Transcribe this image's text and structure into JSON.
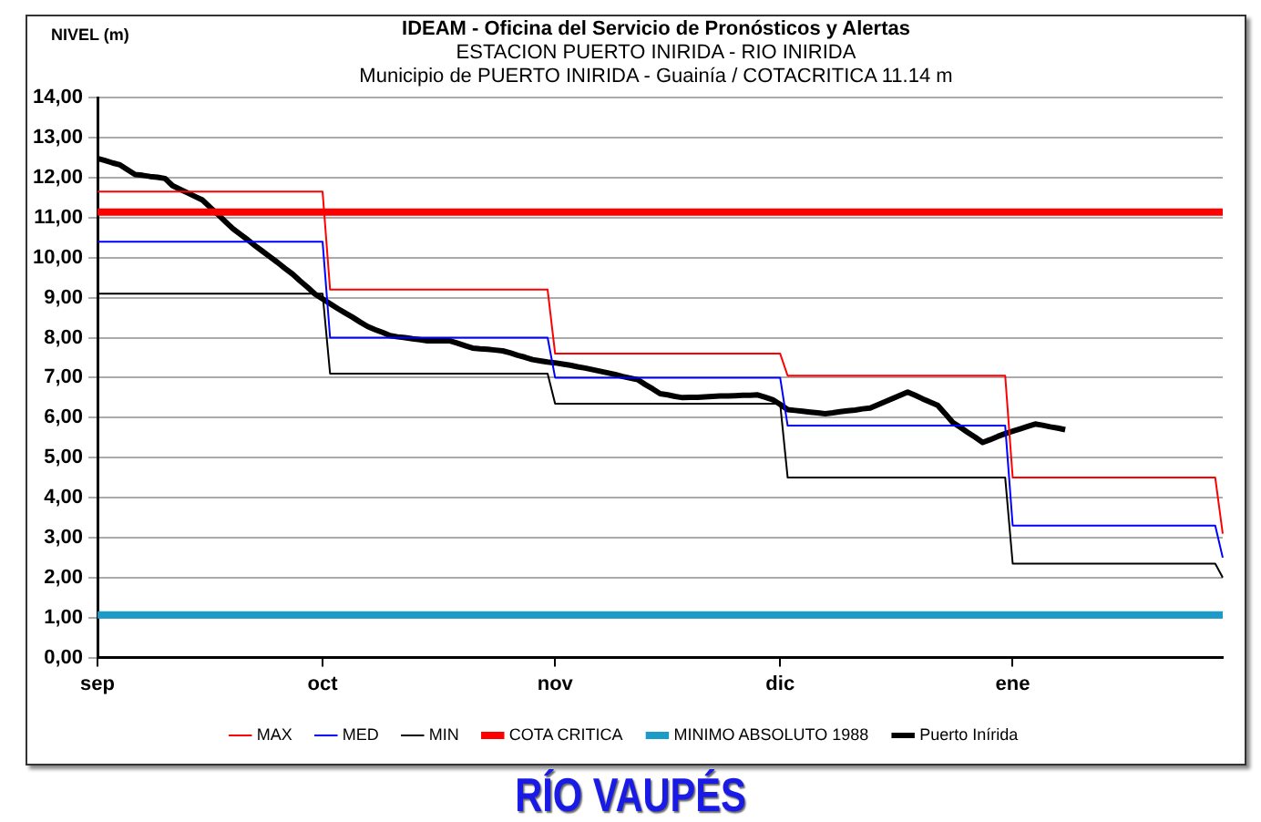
{
  "chart_data": {
    "type": "line",
    "title": "IDEAM - Oficina del Servicio de Pronósticos y Alertas",
    "subtitle": "ESTACION PUERTO INIRIDA - RIO INIRIDA",
    "ylabel": "NIVEL (m)",
    "annotations": [
      "Municipio de PUERTO INIRIDA - Guainía  /  COTACRITICA 11.14 m",
      "RÍO VAUPÉS"
    ],
    "categories": [
      "sep",
      null,
      null,
      null,
      null,
      null,
      null,
      null,
      null,
      null,
      null,
      null,
      null,
      null,
      null,
      null,
      null,
      null,
      null,
      null,
      null,
      null,
      null,
      null,
      null,
      null,
      null,
      null,
      null,
      null,
      "oct",
      null,
      null,
      null,
      null,
      null,
      null,
      null,
      null,
      null,
      null,
      null,
      null,
      null,
      null,
      null,
      null,
      null,
      null,
      null,
      null,
      null,
      null,
      null,
      null,
      null,
      null,
      null,
      null,
      null,
      null,
      "nov",
      null,
      null,
      null,
      null,
      null,
      null,
      null,
      null,
      null,
      null,
      null,
      null,
      null,
      null,
      null,
      null,
      null,
      null,
      null,
      null,
      null,
      null,
      null,
      null,
      null,
      null,
      null,
      null,
      null,
      "dic",
      null,
      null,
      null,
      null,
      null,
      null,
      null,
      null,
      null,
      null,
      null,
      null,
      null,
      null,
      null,
      null,
      null,
      null,
      null,
      null,
      null,
      null,
      null,
      null,
      null,
      null,
      null,
      null,
      null,
      null,
      "ene",
      null,
      null,
      null,
      null,
      null,
      null,
      null,
      null,
      null,
      null,
      null,
      null,
      null,
      null,
      null,
      null,
      null,
      null,
      null,
      null,
      null,
      null,
      null,
      null,
      null,
      null,
      null,
      null
    ],
    "ylim": [
      0,
      14
    ],
    "yticks": [
      {
        "value": 0,
        "label": "0,00"
      },
      {
        "value": 1,
        "label": "1,00"
      },
      {
        "value": 2,
        "label": "2,00"
      },
      {
        "value": 3,
        "label": "3,00"
      },
      {
        "value": 4,
        "label": "4,00"
      },
      {
        "value": 5,
        "label": "5,00"
      },
      {
        "value": 6,
        "label": "6,00"
      },
      {
        "value": 7,
        "label": "7,00"
      },
      {
        "value": 8,
        "label": "8,00"
      },
      {
        "value": 9,
        "label": "9,00"
      },
      {
        "value": 10,
        "label": "10,00"
      },
      {
        "value": 11,
        "label": "11,00"
      },
      {
        "value": 12,
        "label": "12,00"
      },
      {
        "value": 13,
        "label": "13,00"
      },
      {
        "value": 14,
        "label": "14,00"
      }
    ],
    "grid": "y",
    "legend": "bottom",
    "marker": "none",
    "line_style": "solid",
    "series": [
      {
        "name": "MAX",
        "color": "#ff0000",
        "values": [
          11.65,
          11.65,
          11.65,
          11.65,
          11.65,
          11.65,
          11.65,
          11.65,
          11.65,
          11.65,
          11.65,
          11.65,
          11.65,
          11.65,
          11.65,
          11.65,
          11.65,
          11.65,
          11.65,
          11.65,
          11.65,
          11.65,
          11.65,
          11.65,
          11.65,
          11.65,
          11.65,
          11.65,
          11.65,
          11.65,
          11.65,
          9.2,
          9.2,
          9.2,
          9.2,
          9.2,
          9.2,
          9.2,
          9.2,
          9.2,
          9.2,
          9.2,
          9.2,
          9.2,
          9.2,
          9.2,
          9.2,
          9.2,
          9.2,
          9.2,
          9.2,
          9.2,
          9.2,
          9.2,
          9.2,
          9.2,
          9.2,
          9.2,
          9.2,
          9.2,
          9.2,
          7.6,
          7.6,
          7.6,
          7.6,
          7.6,
          7.6,
          7.6,
          7.6,
          7.6,
          7.6,
          7.6,
          7.6,
          7.6,
          7.6,
          7.6,
          7.6,
          7.6,
          7.6,
          7.6,
          7.6,
          7.6,
          7.6,
          7.6,
          7.6,
          7.6,
          7.6,
          7.6,
          7.6,
          7.6,
          7.6,
          7.6,
          7.05,
          7.05,
          7.05,
          7.05,
          7.05,
          7.05,
          7.05,
          7.05,
          7.05,
          7.05,
          7.05,
          7.05,
          7.05,
          7.05,
          7.05,
          7.05,
          7.05,
          7.05,
          7.05,
          7.05,
          7.05,
          7.05,
          7.05,
          7.05,
          7.05,
          7.05,
          7.05,
          7.05,
          7.05,
          7.05,
          4.5,
          4.5,
          4.5,
          4.5,
          4.5,
          4.5,
          4.5,
          4.5,
          4.5,
          4.5,
          4.5,
          4.5,
          4.5,
          4.5,
          4.5,
          4.5,
          4.5,
          4.5,
          4.5,
          4.5,
          4.5,
          4.5,
          4.5,
          4.5,
          4.5,
          4.5,
          4.5,
          4.5,
          3.1
        ]
      },
      {
        "name": "MED",
        "color": "#0000ff",
        "values": [
          10.4,
          10.4,
          10.4,
          10.4,
          10.4,
          10.4,
          10.4,
          10.4,
          10.4,
          10.4,
          10.4,
          10.4,
          10.4,
          10.4,
          10.4,
          10.4,
          10.4,
          10.4,
          10.4,
          10.4,
          10.4,
          10.4,
          10.4,
          10.4,
          10.4,
          10.4,
          10.4,
          10.4,
          10.4,
          10.4,
          10.4,
          8.0,
          8.0,
          8.0,
          8.0,
          8.0,
          8.0,
          8.0,
          8.0,
          8.0,
          8.0,
          8.0,
          8.0,
          8.0,
          8.0,
          8.0,
          8.0,
          8.0,
          8.0,
          8.0,
          8.0,
          8.0,
          8.0,
          8.0,
          8.0,
          8.0,
          8.0,
          8.0,
          8.0,
          8.0,
          8.0,
          7.0,
          7.0,
          7.0,
          7.0,
          7.0,
          7.0,
          7.0,
          7.0,
          7.0,
          7.0,
          7.0,
          7.0,
          7.0,
          7.0,
          7.0,
          7.0,
          7.0,
          7.0,
          7.0,
          7.0,
          7.0,
          7.0,
          7.0,
          7.0,
          7.0,
          7.0,
          7.0,
          7.0,
          7.0,
          7.0,
          7.0,
          5.8,
          5.8,
          5.8,
          5.8,
          5.8,
          5.8,
          5.8,
          5.8,
          5.8,
          5.8,
          5.8,
          5.8,
          5.8,
          5.8,
          5.8,
          5.8,
          5.8,
          5.8,
          5.8,
          5.8,
          5.8,
          5.8,
          5.8,
          5.8,
          5.8,
          5.8,
          5.8,
          5.8,
          5.8,
          5.8,
          3.3,
          3.3,
          3.3,
          3.3,
          3.3,
          3.3,
          3.3,
          3.3,
          3.3,
          3.3,
          3.3,
          3.3,
          3.3,
          3.3,
          3.3,
          3.3,
          3.3,
          3.3,
          3.3,
          3.3,
          3.3,
          3.3,
          3.3,
          3.3,
          3.3,
          3.3,
          3.3,
          3.3,
          2.5
        ]
      },
      {
        "name": "MIN",
        "color": "#000000",
        "values": [
          9.1,
          9.1,
          9.1,
          9.1,
          9.1,
          9.1,
          9.1,
          9.1,
          9.1,
          9.1,
          9.1,
          9.1,
          9.1,
          9.1,
          9.1,
          9.1,
          9.1,
          9.1,
          9.1,
          9.1,
          9.1,
          9.1,
          9.1,
          9.1,
          9.1,
          9.1,
          9.1,
          9.1,
          9.1,
          9.1,
          9.1,
          7.1,
          7.1,
          7.1,
          7.1,
          7.1,
          7.1,
          7.1,
          7.1,
          7.1,
          7.1,
          7.1,
          7.1,
          7.1,
          7.1,
          7.1,
          7.1,
          7.1,
          7.1,
          7.1,
          7.1,
          7.1,
          7.1,
          7.1,
          7.1,
          7.1,
          7.1,
          7.1,
          7.1,
          7.1,
          7.1,
          6.35,
          6.35,
          6.35,
          6.35,
          6.35,
          6.35,
          6.35,
          6.35,
          6.35,
          6.35,
          6.35,
          6.35,
          6.35,
          6.35,
          6.35,
          6.35,
          6.35,
          6.35,
          6.35,
          6.35,
          6.35,
          6.35,
          6.35,
          6.35,
          6.35,
          6.35,
          6.35,
          6.35,
          6.35,
          6.35,
          6.35,
          4.5,
          4.5,
          4.5,
          4.5,
          4.5,
          4.5,
          4.5,
          4.5,
          4.5,
          4.5,
          4.5,
          4.5,
          4.5,
          4.5,
          4.5,
          4.5,
          4.5,
          4.5,
          4.5,
          4.5,
          4.5,
          4.5,
          4.5,
          4.5,
          4.5,
          4.5,
          4.5,
          4.5,
          4.5,
          4.5,
          2.35,
          2.35,
          2.35,
          2.35,
          2.35,
          2.35,
          2.35,
          2.35,
          2.35,
          2.35,
          2.35,
          2.35,
          2.35,
          2.35,
          2.35,
          2.35,
          2.35,
          2.35,
          2.35,
          2.35,
          2.35,
          2.35,
          2.35,
          2.35,
          2.35,
          2.35,
          2.35,
          2.35,
          2.0
        ]
      },
      {
        "name": "COTA CRITICA",
        "color": "#ff0000",
        "values": [
          11.14,
          11.14,
          11.14,
          11.14,
          11.14,
          11.14,
          11.14,
          11.14,
          11.14,
          11.14,
          11.14,
          11.14,
          11.14,
          11.14,
          11.14,
          11.14,
          11.14,
          11.14,
          11.14,
          11.14,
          11.14,
          11.14,
          11.14,
          11.14,
          11.14,
          11.14,
          11.14,
          11.14,
          11.14,
          11.14,
          11.14,
          11.14,
          11.14,
          11.14,
          11.14,
          11.14,
          11.14,
          11.14,
          11.14,
          11.14,
          11.14,
          11.14,
          11.14,
          11.14,
          11.14,
          11.14,
          11.14,
          11.14,
          11.14,
          11.14,
          11.14,
          11.14,
          11.14,
          11.14,
          11.14,
          11.14,
          11.14,
          11.14,
          11.14,
          11.14,
          11.14,
          11.14,
          11.14,
          11.14,
          11.14,
          11.14,
          11.14,
          11.14,
          11.14,
          11.14,
          11.14,
          11.14,
          11.14,
          11.14,
          11.14,
          11.14,
          11.14,
          11.14,
          11.14,
          11.14,
          11.14,
          11.14,
          11.14,
          11.14,
          11.14,
          11.14,
          11.14,
          11.14,
          11.14,
          11.14,
          11.14,
          11.14,
          11.14,
          11.14,
          11.14,
          11.14,
          11.14,
          11.14,
          11.14,
          11.14,
          11.14,
          11.14,
          11.14,
          11.14,
          11.14,
          11.14,
          11.14,
          11.14,
          11.14,
          11.14,
          11.14,
          11.14,
          11.14,
          11.14,
          11.14,
          11.14,
          11.14,
          11.14,
          11.14,
          11.14,
          11.14,
          11.14,
          11.14,
          11.14,
          11.14,
          11.14,
          11.14,
          11.14,
          11.14,
          11.14,
          11.14,
          11.14,
          11.14,
          11.14,
          11.14,
          11.14,
          11.14,
          11.14,
          11.14,
          11.14,
          11.14,
          11.14,
          11.14,
          11.14,
          11.14,
          11.14,
          11.14,
          11.14,
          11.14,
          11.14,
          11.14
        ]
      },
      {
        "name": "MINIMO ABSOLUTO 1988",
        "color": "#1a9bc8",
        "values": [
          1.07,
          1.07,
          1.07,
          1.07,
          1.07,
          1.07,
          1.07,
          1.07,
          1.07,
          1.07,
          1.07,
          1.07,
          1.07,
          1.07,
          1.07,
          1.07,
          1.07,
          1.07,
          1.07,
          1.07,
          1.07,
          1.07,
          1.07,
          1.07,
          1.07,
          1.07,
          1.07,
          1.07,
          1.07,
          1.07,
          1.07,
          1.07,
          1.07,
          1.07,
          1.07,
          1.07,
          1.07,
          1.07,
          1.07,
          1.07,
          1.07,
          1.07,
          1.07,
          1.07,
          1.07,
          1.07,
          1.07,
          1.07,
          1.07,
          1.07,
          1.07,
          1.07,
          1.07,
          1.07,
          1.07,
          1.07,
          1.07,
          1.07,
          1.07,
          1.07,
          1.07,
          1.07,
          1.07,
          1.07,
          1.07,
          1.07,
          1.07,
          1.07,
          1.07,
          1.07,
          1.07,
          1.07,
          1.07,
          1.07,
          1.07,
          1.07,
          1.07,
          1.07,
          1.07,
          1.07,
          1.07,
          1.07,
          1.07,
          1.07,
          1.07,
          1.07,
          1.07,
          1.07,
          1.07,
          1.07,
          1.07,
          1.07,
          1.07,
          1.07,
          1.07,
          1.07,
          1.07,
          1.07,
          1.07,
          1.07,
          1.07,
          1.07,
          1.07,
          1.07,
          1.07,
          1.07,
          1.07,
          1.07,
          1.07,
          1.07,
          1.07,
          1.07,
          1.07,
          1.07,
          1.07,
          1.07,
          1.07,
          1.07,
          1.07,
          1.07,
          1.07,
          1.07,
          1.07,
          1.07,
          1.07,
          1.07,
          1.07,
          1.07,
          1.07,
          1.07,
          1.07,
          1.07,
          1.07,
          1.07,
          1.07,
          1.07,
          1.07,
          1.07,
          1.07,
          1.07,
          1.07,
          1.07,
          1.07,
          1.07,
          1.07,
          1.07,
          1.07,
          1.07,
          1.07,
          1.07,
          1.07
        ]
      },
      {
        "name": "Puerto Inírida",
        "color": "#000000",
        "values": [
          12.48,
          12.43,
          12.37,
          12.32,
          12.2,
          12.08,
          12.06,
          12.03,
          12.01,
          11.98,
          11.8,
          11.71,
          11.62,
          11.53,
          11.44,
          11.26,
          11.09,
          10.91,
          10.73,
          10.59,
          10.45,
          10.3,
          10.16,
          10.02,
          9.88,
          9.73,
          9.59,
          9.42,
          9.26,
          9.09,
          8.97,
          8.85,
          8.73,
          8.62,
          8.51,
          8.39,
          8.28,
          8.2,
          8.13,
          8.05,
          8.02,
          8.0,
          7.97,
          7.95,
          7.92,
          7.92,
          7.92,
          7.92,
          7.86,
          7.8,
          7.74,
          7.72,
          7.71,
          7.69,
          7.67,
          7.62,
          7.56,
          7.51,
          7.45,
          7.42,
          7.39,
          7.37,
          7.34,
          7.31,
          7.27,
          7.24,
          7.2,
          7.16,
          7.12,
          7.08,
          7.03,
          6.99,
          6.95,
          6.83,
          6.72,
          6.6,
          6.57,
          6.53,
          6.5,
          6.51,
          6.51,
          6.52,
          6.53,
          6.54,
          6.54,
          6.55,
          6.56,
          6.56,
          6.57,
          6.51,
          6.45,
          6.33,
          6.2,
          6.18,
          6.16,
          6.14,
          6.12,
          6.1,
          6.12,
          6.15,
          6.17,
          6.19,
          6.22,
          6.24,
          6.32,
          6.4,
          6.48,
          6.56,
          6.64,
          6.56,
          6.47,
          6.39,
          6.31,
          6.1,
          5.88,
          5.76,
          5.63,
          5.51,
          5.38,
          5.45,
          5.53,
          5.6,
          5.66,
          5.72,
          5.78,
          5.84,
          5.81,
          5.77,
          5.74,
          5.7,
          null,
          null,
          null,
          null,
          null,
          null,
          null,
          null,
          null,
          null,
          null,
          null,
          null,
          null,
          null,
          null,
          null,
          null,
          null,
          null,
          null
        ]
      }
    ]
  }
}
